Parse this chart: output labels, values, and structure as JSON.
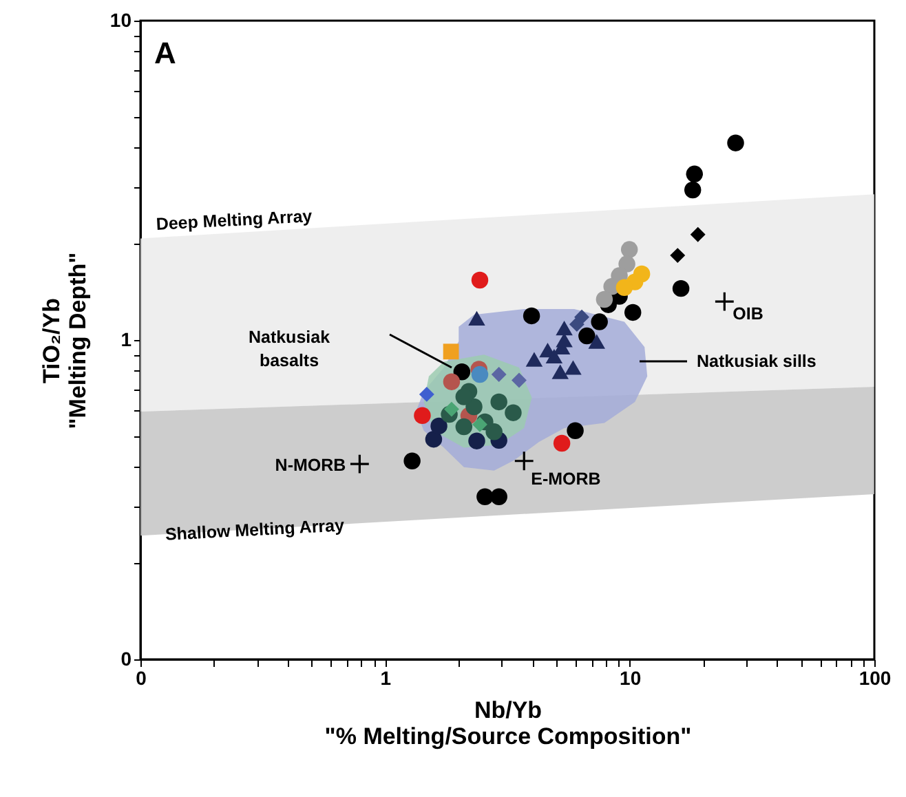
{
  "chart_data": {
    "type": "scatter",
    "xlabel": "Nb/Yb\n\"% Melting/Source Composition\"",
    "ylabel": "TiO₂/Yb\n\"Melting Depth\"",
    "log": "xy",
    "grid": false,
    "xlim": [
      0.1,
      100
    ],
    "xticks": [
      {
        "value": 0.1,
        "label": "0"
      },
      {
        "value": 0.2,
        "label": null
      },
      {
        "value": 0.3,
        "label": null
      },
      {
        "value": 0.4,
        "label": null
      },
      {
        "value": 0.5,
        "label": null
      },
      {
        "value": 0.6,
        "label": null
      },
      {
        "value": 0.7,
        "label": null
      },
      {
        "value": 0.8,
        "label": null
      },
      {
        "value": 0.9,
        "label": null
      },
      1,
      {
        "value": 2,
        "label": null
      },
      {
        "value": 3,
        "label": null
      },
      {
        "value": 4,
        "label": null
      },
      {
        "value": 5,
        "label": null
      },
      {
        "value": 6,
        "label": null
      },
      {
        "value": 7,
        "label": null
      },
      {
        "value": 8,
        "label": null
      },
      {
        "value": 9,
        "label": null
      },
      10,
      {
        "value": 20,
        "label": null
      },
      {
        "value": 30,
        "label": null
      },
      {
        "value": 40,
        "label": null
      },
      {
        "value": 50,
        "label": null
      },
      {
        "value": 60,
        "label": null
      },
      {
        "value": 70,
        "label": null
      },
      {
        "value": 80,
        "label": null
      },
      {
        "value": 90,
        "label": null
      },
      100
    ],
    "ylim": [
      0.1,
      10
    ],
    "yticks": [
      {
        "value": 0.1,
        "label": "0"
      },
      {
        "value": 0.2,
        "label": null
      },
      {
        "value": 0.3,
        "label": null
      },
      {
        "value": 0.4,
        "label": null
      },
      {
        "value": 0.5,
        "label": null
      },
      {
        "value": 0.6,
        "label": null
      },
      {
        "value": 0.7,
        "label": null
      },
      {
        "value": 0.8,
        "label": null
      },
      {
        "value": 0.9,
        "label": null
      },
      1,
      {
        "value": 2,
        "label": null
      },
      {
        "value": 3,
        "label": null
      },
      {
        "value": 4,
        "label": null
      },
      {
        "value": 5,
        "label": null
      },
      {
        "value": 6,
        "label": null
      },
      {
        "value": 7,
        "label": null
      },
      {
        "value": 8,
        "label": null
      },
      {
        "value": 9,
        "label": null
      },
      10
    ],
    "series": [
      {
        "type": "area",
        "color": "#ebebeb",
        "x": [
          0.1,
          100,
          100,
          0.1
        ],
        "values": [
          0.597,
          0.714,
          2.86,
          2.08
        ]
      },
      {
        "type": "area",
        "color": "#c4c4c4",
        "x": [
          0.1,
          100,
          100,
          0.1
        ],
        "values": [
          0.244,
          0.329,
          0.714,
          0.597
        ]
      },
      {
        "type": "area",
        "color": "#a3abd8",
        "x": [
          2.0,
          2.31,
          3.7,
          5.93,
          9.51,
          11.5,
          11.8,
          10.5,
          7.88,
          5.4,
          4.26,
          3.37,
          2.79,
          2.1,
          1.74,
          1.44,
          1.34,
          1.44,
          1.74,
          2.0
        ],
        "values": [
          1.1,
          1.2,
          1.25,
          1.25,
          1.14,
          0.95,
          0.77,
          0.64,
          0.55,
          0.53,
          0.48,
          0.42,
          0.39,
          0.4,
          0.46,
          0.52,
          0.6,
          0.69,
          0.82,
          0.99
        ]
      },
      {
        "type": "area",
        "color": "#9ccbb0",
        "x": [
          1.74,
          2.54,
          3.53,
          3.98,
          3.7,
          2.92,
          2.1,
          1.58,
          1.44,
          1.51
        ],
        "values": [
          0.855,
          0.9,
          0.82,
          0.66,
          0.53,
          0.47,
          0.46,
          0.52,
          0.64,
          0.77
        ]
      },
      {
        "marker": "circle",
        "color": "#000000",
        "x": [
          27.1,
          18.4,
          18.1,
          16.2,
          10.3,
          9.07,
          8.18,
          7.52,
          6.68,
          3.97,
          5.99,
          2.06
        ],
        "values": [
          4.14,
          3.31,
          2.95,
          1.45,
          1.22,
          1.37,
          1.29,
          1.14,
          1.03,
          1.19,
          0.52,
          0.795
        ]
      },
      {
        "marker": "diamond",
        "color": "#000000",
        "x": [
          19.0,
          15.7
        ],
        "values": [
          2.14,
          1.84
        ]
      },
      {
        "marker": "circle",
        "color": "#9e9e9e",
        "x": [
          9.97,
          9.74,
          9.07,
          8.45,
          7.88
        ],
        "values": [
          1.92,
          1.73,
          1.59,
          1.47,
          1.34
        ]
      },
      {
        "marker": "circle",
        "color": "#f2b51a",
        "x": [
          11.2,
          10.5,
          9.51
        ],
        "values": [
          1.61,
          1.52,
          1.46
        ]
      },
      {
        "marker": "triangle",
        "color": "#1f2a5c",
        "x": [
          2.37,
          4.07,
          4.62,
          5.4,
          5.28,
          4.91,
          5.87,
          5.2,
          7.33,
          5.4
        ],
        "values": [
          1.17,
          0.87,
          0.93,
          1.09,
          0.95,
          0.89,
          0.82,
          0.795,
          0.99,
          1.0
        ]
      },
      {
        "marker": "diamond",
        "color": "#3b4a80",
        "x": [
          6.37,
          6.08
        ],
        "values": [
          1.18,
          1.12
        ]
      },
      {
        "marker": "circle",
        "color": "#e01b1b",
        "x": [
          2.44,
          5.28,
          1.42
        ],
        "values": [
          1.54,
          0.475,
          0.58
        ]
      },
      {
        "marker": "circle",
        "color": "#000000",
        "x": [
          1.29,
          2.56,
          2.92
        ],
        "values": [
          0.418,
          0.323,
          0.323
        ]
      },
      {
        "marker": "square",
        "color": "#f0a020",
        "x": [
          1.86
        ],
        "values": [
          0.92
        ]
      },
      {
        "marker": "circle",
        "color": "#15204a",
        "x": [
          1.58,
          2.37,
          2.92,
          1.66
        ],
        "values": [
          0.489,
          0.483,
          0.485,
          0.538
        ]
      },
      {
        "marker": "circle",
        "color": "#b5554e",
        "x": [
          1.87,
          2.42,
          2.2
        ],
        "values": [
          0.74,
          0.81,
          0.579
        ]
      },
      {
        "marker": "circle",
        "color": "#4a8ac0",
        "x": [
          2.44
        ],
        "values": [
          0.78
        ]
      },
      {
        "marker": "diamond",
        "color": "#5b66a3",
        "x": [
          3.53,
          2.92
        ],
        "values": [
          0.748,
          0.78
        ]
      },
      {
        "marker": "diamond",
        "color": "#3f5fd0",
        "x": [
          1.48
        ],
        "values": [
          0.676
        ]
      },
      {
        "marker": "circle",
        "color": "#2a5a4a",
        "x": [
          2.2,
          2.31,
          2.92,
          3.34,
          2.1,
          2.79,
          2.56,
          1.83,
          2.1
        ],
        "values": [
          0.69,
          0.618,
          0.64,
          0.592,
          0.535,
          0.516,
          0.554,
          0.585,
          0.664
        ]
      },
      {
        "marker": "diamond",
        "color": "#4aa574",
        "x": [
          1.87,
          2.44
        ],
        "values": [
          0.607,
          0.544
        ]
      },
      {
        "marker": "cross",
        "color": "#000000",
        "x": [
          0.787,
          3.7,
          24.4
        ],
        "values": [
          0.409,
          0.418,
          1.32
        ]
      }
    ],
    "annotations": [
      "A",
      "Deep Melting Array",
      "Shallow Melting Array",
      "Natkusiak basalts",
      "Natkusiak sills",
      {
        "text": "N-MORB",
        "x": 0.787,
        "y": 0.409
      },
      {
        "text": "E-MORB",
        "x": 3.7,
        "y": 0.418
      },
      {
        "text": "OIB",
        "x": 24.4,
        "y": 1.32
      }
    ]
  }
}
